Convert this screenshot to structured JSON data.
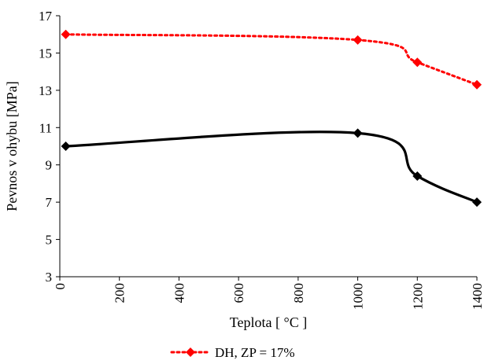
{
  "chart_data": {
    "type": "line",
    "xlabel": "Teplota [ °C ]",
    "ylabel": "Pevnos v ohybu [MPa]",
    "xlim": [
      0,
      1400
    ],
    "ylim": [
      3,
      17
    ],
    "x_ticks": [
      "0",
      "200",
      "400",
      "600",
      "800",
      "1000",
      "1200",
      "1400"
    ],
    "y_ticks": [
      "3",
      "5",
      "7",
      "9",
      "11",
      "13",
      "15",
      "17"
    ],
    "grid": false,
    "legend_position": "bottom",
    "series": [
      {
        "name": "DH, ZP = 17%",
        "color": "#ff0000",
        "line_style": "dotted",
        "marker": "diamond",
        "x": [
          20,
          1000,
          1200,
          1400
        ],
        "y": [
          16.0,
          15.7,
          14.5,
          13.3
        ]
      },
      {
        "color": "#000000",
        "line_style": "solid-smooth",
        "marker": "diamond",
        "x": [
          20,
          1000,
          1200,
          1400
        ],
        "y": [
          10.0,
          10.7,
          8.4,
          7.0
        ]
      }
    ]
  }
}
